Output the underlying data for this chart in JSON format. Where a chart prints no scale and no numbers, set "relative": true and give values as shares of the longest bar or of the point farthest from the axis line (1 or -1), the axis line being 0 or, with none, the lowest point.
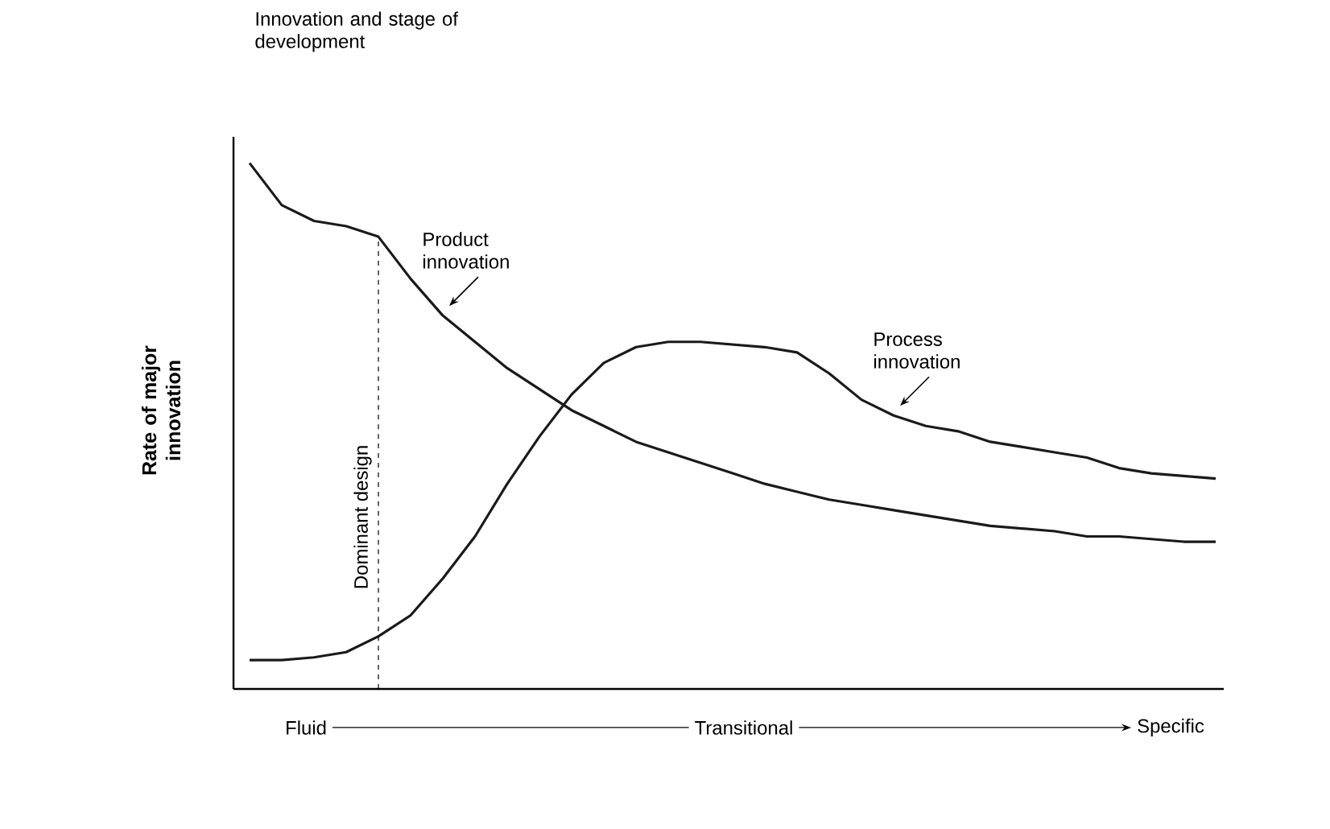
{
  "chart_data": {
    "type": "line",
    "relative": true,
    "title": "Innovation and stage of development",
    "xlabel": "Transitional",
    "ylabel": "Rate of major innovation",
    "annotations": [
      "Fluid",
      "Specific",
      "Dominant design"
    ],
    "marker": "none",
    "line_style": "solid",
    "categories": [
      null,
      null,
      null,
      null,
      null,
      null,
      null,
      null,
      null,
      null,
      null,
      null,
      null,
      null,
      null,
      null,
      null,
      null,
      null,
      null,
      null,
      null,
      null,
      null,
      null,
      null,
      null,
      null,
      null,
      null,
      null
    ],
    "series": [
      {
        "name": "Product innovation",
        "color": "#1a1a1a",
        "values": [
          1.0,
          0.92,
          0.89,
          0.88,
          0.86,
          0.78,
          0.71,
          0.66,
          0.61,
          0.57,
          0.53,
          0.5,
          0.47,
          0.45,
          0.43,
          0.41,
          0.39,
          0.375,
          0.36,
          0.35,
          0.34,
          0.33,
          0.32,
          0.31,
          0.305,
          0.3,
          0.29,
          0.29,
          0.285,
          0.28,
          0.28
        ]
      },
      {
        "name": "Process innovation",
        "color": "#1a1a1a",
        "values": [
          0.055,
          0.055,
          0.06,
          0.07,
          0.1,
          0.14,
          0.21,
          0.29,
          0.39,
          0.48,
          0.56,
          0.62,
          0.65,
          0.66,
          0.66,
          0.655,
          0.65,
          0.64,
          0.6,
          0.55,
          0.52,
          0.5,
          0.49,
          0.47,
          0.46,
          0.45,
          0.44,
          0.42,
          0.41,
          0.405,
          0.4
        ]
      }
    ]
  }
}
